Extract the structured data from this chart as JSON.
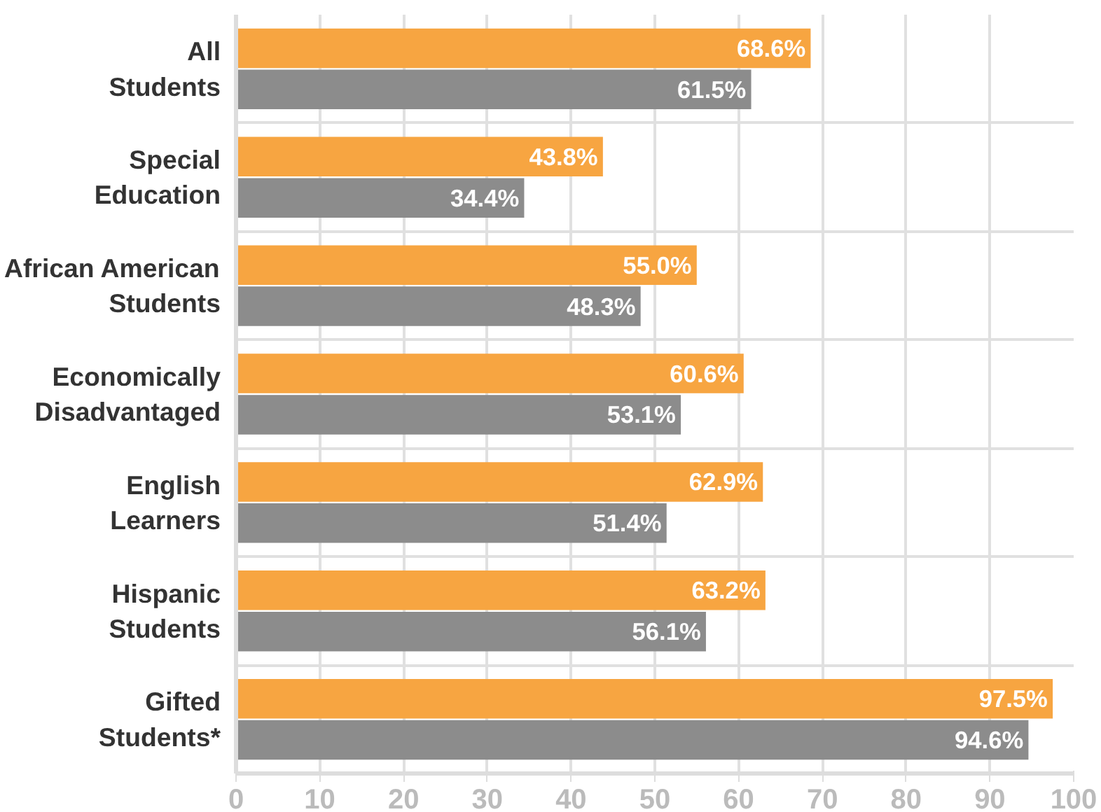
{
  "chart_data": {
    "type": "bar",
    "orientation": "horizontal",
    "categories": [
      "All Students",
      "Special Education",
      "African American Students",
      "Economically Disadvantaged",
      "English Learners",
      "Hispanic Students",
      "Gifted Students*"
    ],
    "series": [
      {
        "color": "#f7a541",
        "values": [
          68.6,
          43.8,
          55.0,
          60.6,
          62.9,
          63.2,
          97.5
        ],
        "value_labels": [
          "68.6%",
          "43.8%",
          "55.0%",
          "60.6%",
          "62.9%",
          "63.2%",
          "97.5%"
        ]
      },
      {
        "color": "#8c8c8c",
        "values": [
          61.5,
          34.4,
          48.3,
          53.1,
          51.4,
          56.1,
          94.6
        ],
        "value_labels": [
          "61.5%",
          "34.4%",
          "48.3%",
          "53.1%",
          "51.4%",
          "56.1%",
          "94.6%"
        ]
      }
    ],
    "xlim": [
      0,
      100
    ],
    "xticks": [
      0,
      10,
      20,
      30,
      40,
      50,
      60,
      70,
      80,
      90,
      100
    ],
    "grid": true
  }
}
